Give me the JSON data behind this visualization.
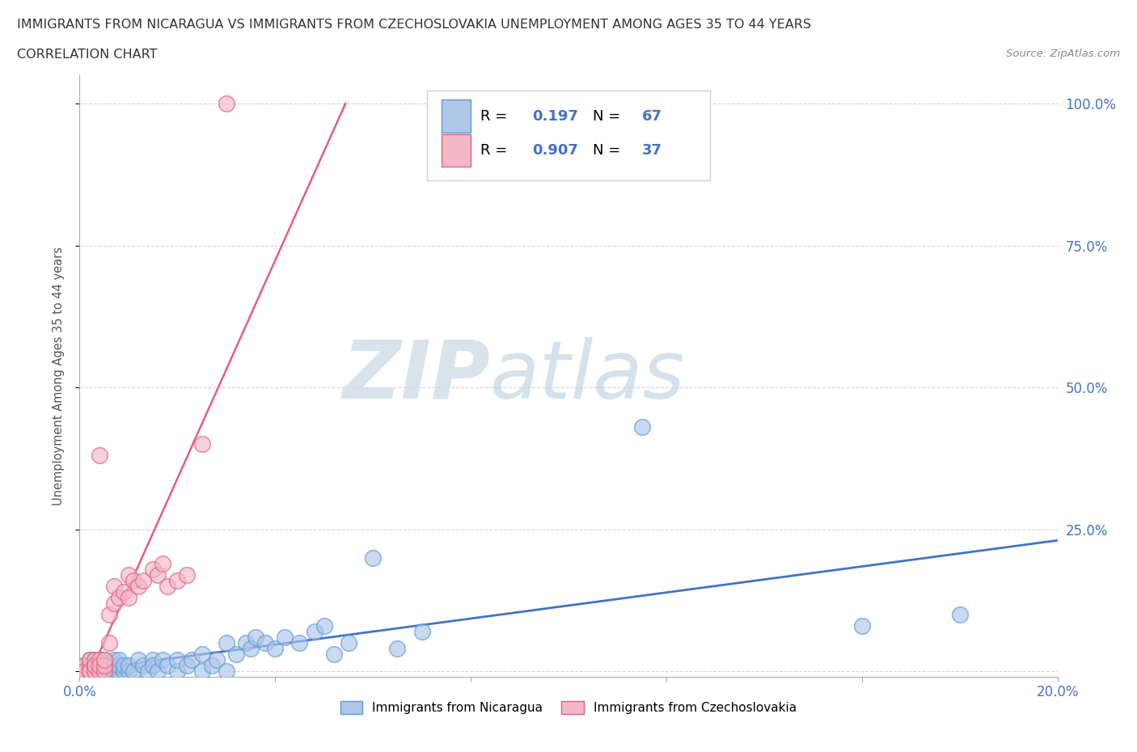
{
  "title_line1": "IMMIGRANTS FROM NICARAGUA VS IMMIGRANTS FROM CZECHOSLOVAKIA UNEMPLOYMENT AMONG AGES 35 TO 44 YEARS",
  "title_line2": "CORRELATION CHART",
  "source_text": "Source: ZipAtlas.com",
  "ylabel": "Unemployment Among Ages 35 to 44 years",
  "xlim": [
    0.0,
    0.2
  ],
  "ylim": [
    -0.01,
    1.05
  ],
  "watermark_zip": "ZIP",
  "watermark_atlas": "atlas",
  "nicaragua_color": "#aec6e8",
  "nicaragua_edge": "#5b9bd5",
  "czechoslovakia_color": "#f4b8c8",
  "czechoslovakia_edge": "#e06080",
  "nicaragua_R": 0.197,
  "nicaragua_N": 67,
  "czechoslovakia_R": 0.907,
  "czechoslovakia_N": 37,
  "nicaragua_line_color": "#4472c4",
  "czechoslovakia_line_color": "#e06080",
  "legend_label_nicaragua": "Immigrants from Nicaragua",
  "legend_label_czechoslovakia": "Immigrants from Czechoslovakia",
  "background_color": "#ffffff",
  "grid_color": "#d0d0d0",
  "title_color": "#333333",
  "tick_color": "#4472c4",
  "source_color": "#888888",
  "ylabel_color": "#555555",
  "legend_R_color": "#000000",
  "legend_N_color": "#4472c4"
}
